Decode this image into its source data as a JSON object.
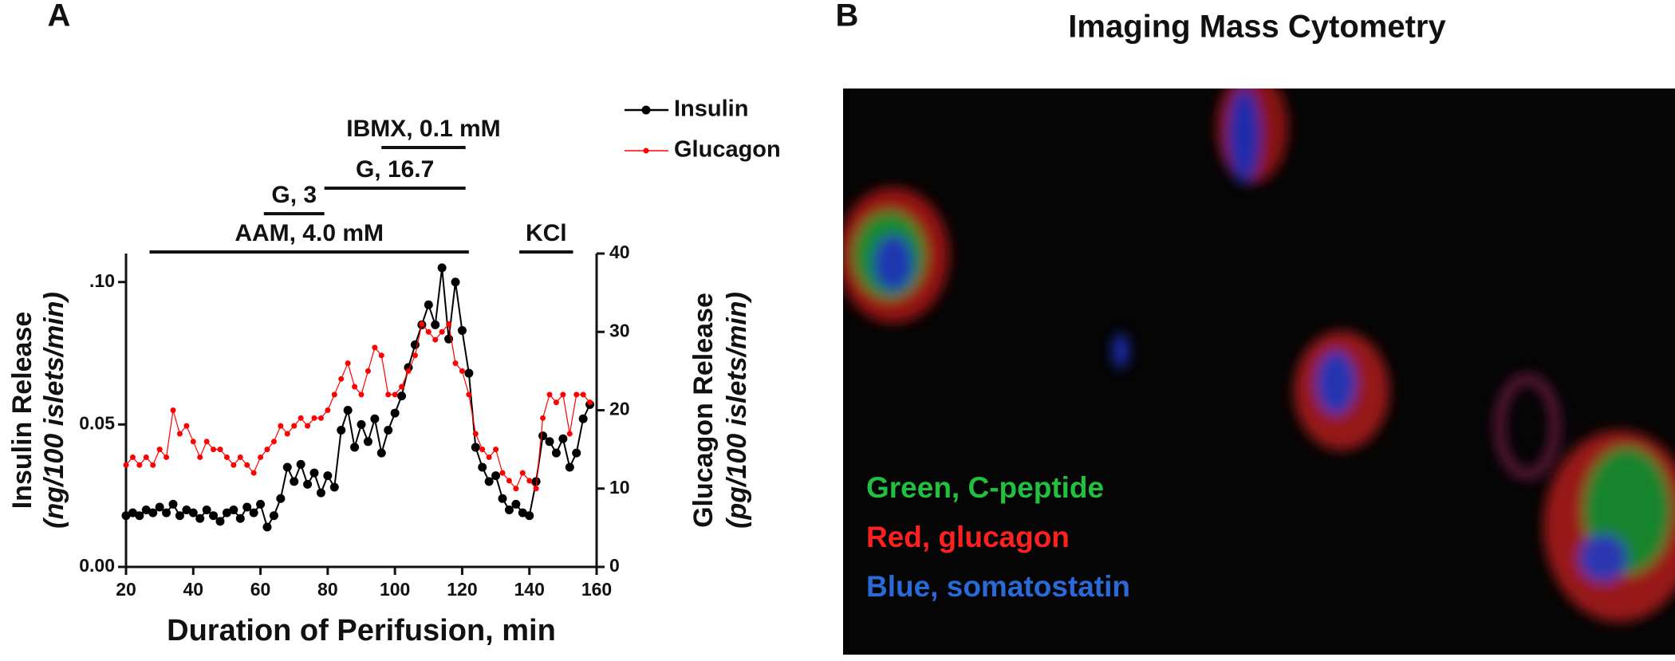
{
  "chart_data": {
    "type": "line",
    "panel_labels": [
      "A",
      "B"
    ],
    "x_label": "Duration of Perifusion, min",
    "y_label": [
      "Insulin Release",
      "(ng/100 islets/min)"
    ],
    "y2_label": [
      "Glucagon Release",
      "(pg/100 islets/min)"
    ],
    "xlim": [
      20,
      160
    ],
    "xticks": [
      20,
      40,
      60,
      80,
      100,
      120,
      140,
      160
    ],
    "ylim": [
      0,
      0.11
    ],
    "yticks": [
      {
        "value": 0,
        "label": "0.00"
      },
      {
        "value": 0.05,
        "label": "0.05"
      },
      {
        "value": 0.1,
        "label": ".10"
      }
    ],
    "y2lim": [
      0,
      40
    ],
    "y2ticks": [
      0,
      10,
      20,
      30,
      40
    ],
    "legend": "top-right",
    "annotations": [
      {
        "label": "AAM, 4.0 mM",
        "x": [
          27,
          122
        ]
      },
      {
        "label": "G, 3",
        "x": [
          61,
          79
        ]
      },
      {
        "label": "G, 16.7",
        "x": [
          79,
          121
        ]
      },
      {
        "label": "IBMX, 0.1 mM",
        "x": [
          96,
          121
        ]
      },
      {
        "label": "KCl",
        "x": [
          137,
          153
        ]
      }
    ],
    "x": [
      20,
      22,
      24,
      26,
      28,
      30,
      32,
      34,
      36,
      38,
      40,
      42,
      44,
      46,
      48,
      50,
      52,
      54,
      56,
      58,
      60,
      62,
      64,
      66,
      68,
      70,
      72,
      74,
      76,
      78,
      80,
      82,
      84,
      86,
      88,
      90,
      92,
      94,
      96,
      98,
      100,
      102,
      104,
      106,
      108,
      110,
      112,
      114,
      116,
      118,
      120,
      122,
      124,
      126,
      128,
      130,
      132,
      134,
      136,
      138,
      140,
      142,
      144,
      146,
      148,
      150,
      152,
      154,
      156,
      158
    ],
    "series": [
      {
        "name": "Insulin",
        "color": "#000000",
        "values": [
          0.018,
          0.019,
          0.018,
          0.02,
          0.019,
          0.021,
          0.019,
          0.022,
          0.018,
          0.02,
          0.019,
          0.017,
          0.02,
          0.018,
          0.016,
          0.019,
          0.02,
          0.017,
          0.021,
          0.019,
          0.022,
          0.014,
          0.018,
          0.024,
          0.035,
          0.03,
          0.036,
          0.029,
          0.033,
          0.026,
          0.032,
          0.028,
          0.048,
          0.055,
          0.042,
          0.05,
          0.044,
          0.052,
          0.04,
          0.048,
          0.054,
          0.06,
          0.07,
          0.078,
          0.085,
          0.092,
          0.085,
          0.105,
          0.08,
          0.1,
          0.083,
          0.068,
          0.042,
          0.035,
          0.03,
          0.032,
          0.024,
          0.02,
          0.022,
          0.019,
          0.018,
          0.03,
          0.046,
          0.044,
          0.04,
          0.045,
          0.035,
          0.04,
          0.052,
          0.057
        ]
      },
      {
        "name": "Glucagon",
        "color": "#ff0000",
        "axis": "y2",
        "values": [
          13,
          14,
          13,
          14,
          13,
          15,
          14,
          20,
          17,
          18,
          16,
          14,
          16,
          15,
          15,
          14,
          13,
          14,
          13,
          12,
          14,
          15,
          16,
          18,
          17,
          18,
          19,
          18,
          19,
          19,
          20,
          22,
          24,
          26,
          23,
          22,
          25,
          28,
          27,
          22,
          22,
          23,
          25,
          27,
          31,
          30,
          29,
          30,
          31,
          26,
          25,
          22,
          17,
          15,
          14,
          15,
          12,
          11,
          10,
          12,
          11,
          10,
          19,
          22,
          21,
          22,
          17,
          22,
          22,
          21
        ]
      }
    ],
    "image": {
      "title": "Imaging Mass Cytometry",
      "legend": [
        {
          "label": "Green, C-peptide",
          "color": "#22c040"
        },
        {
          "label": "Red, glucagon",
          "color": "#ff2020"
        },
        {
          "label": "Blue, somatostatin",
          "color": "#2a6ad8"
        }
      ]
    }
  }
}
